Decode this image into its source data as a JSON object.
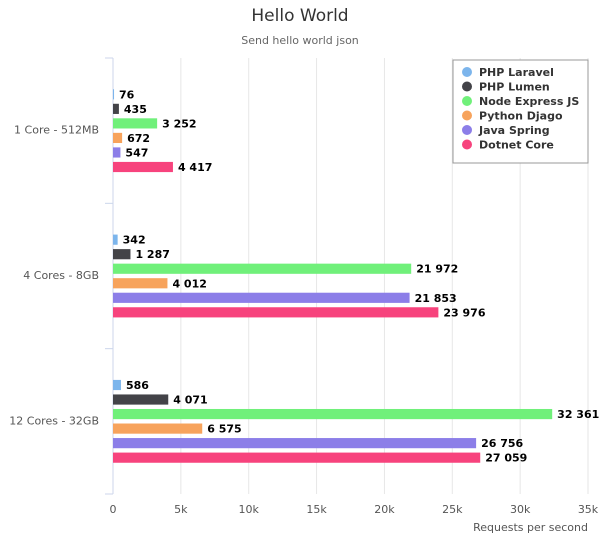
{
  "chart_data": {
    "type": "hbar",
    "title": "Hello World",
    "subtitle": "Send hello world json",
    "x_label": "Requests per second",
    "categories": [
      "1 Core - 512MB",
      "4 Cores - 8GB",
      "12 Cores - 32GB"
    ],
    "series": [
      {
        "name": "PHP Laravel",
        "color": "#7cb5ec",
        "values": [
          76,
          342,
          586
        ],
        "value_labels": [
          "76",
          "342",
          "586"
        ]
      },
      {
        "name": "PHP Lumen",
        "color": "#434348",
        "values": [
          435,
          1287,
          4071
        ],
        "value_labels": [
          "435",
          "1 287",
          "4 071"
        ]
      },
      {
        "name": "Node Express JS",
        "color": "#70f07a",
        "values": [
          3252,
          21972,
          32361
        ],
        "value_labels": [
          "3 252",
          "21 972",
          "32 361"
        ]
      },
      {
        "name": "Python Djago",
        "color": "#f7a35c",
        "values": [
          672,
          4012,
          6575
        ],
        "value_labels": [
          "672",
          "4 012",
          "6 575"
        ]
      },
      {
        "name": "Java Spring",
        "color": "#8c7ee8",
        "values": [
          547,
          21853,
          26756
        ],
        "value_labels": [
          "547",
          "21 853",
          "26 756"
        ]
      },
      {
        "name": "Dotnet Core",
        "color": "#f7437d",
        "values": [
          4417,
          23976,
          27059
        ],
        "value_labels": [
          "4 417",
          "23 976",
          "27 059"
        ]
      }
    ],
    "xlim": [
      0,
      35000
    ],
    "xticks": [
      0,
      {
        "value": 5000,
        "label": "5k"
      },
      {
        "value": 10000,
        "label": "10k"
      },
      {
        "value": 15000,
        "label": "15k"
      },
      {
        "value": 20000,
        "label": "20k"
      },
      {
        "value": 25000,
        "label": "25k"
      },
      {
        "value": 30000,
        "label": "30k"
      },
      {
        "value": 35000,
        "label": "35k"
      }
    ],
    "grid": true,
    "legend": "top-right"
  }
}
